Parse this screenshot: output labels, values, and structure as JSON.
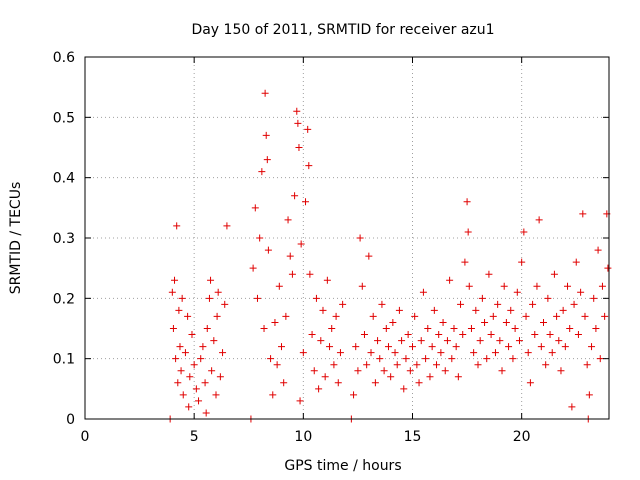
{
  "chart_data": {
    "type": "scatter",
    "title": "Day 150 of 2011, SRMTID for receiver azu1",
    "xlabel": "GPS time / hours",
    "ylabel": "SRMTID / TECUs",
    "xlim": [
      0,
      24
    ],
    "ylim": [
      0,
      0.6
    ],
    "xticks": [
      0,
      5,
      10,
      15,
      20
    ],
    "yticks": [
      0,
      0.1,
      0.2,
      0.3,
      0.4,
      0.5,
      0.6
    ],
    "xtick_labels": [
      "0",
      "5",
      "10",
      "15",
      "20"
    ],
    "ytick_labels": [
      "0",
      "0.1",
      "0.2",
      "0.3",
      "0.4",
      "0.5",
      "0.6"
    ],
    "grid": true,
    "marker": "+",
    "marker_color": "#e00000",
    "series": [
      {
        "name": "SRMTID",
        "points": [
          [
            3.9,
            0.0
          ],
          [
            4.0,
            0.21
          ],
          [
            4.05,
            0.15
          ],
          [
            4.1,
            0.23
          ],
          [
            4.15,
            0.1
          ],
          [
            4.2,
            0.32
          ],
          [
            4.25,
            0.06
          ],
          [
            4.3,
            0.18
          ],
          [
            4.35,
            0.12
          ],
          [
            4.4,
            0.08
          ],
          [
            4.45,
            0.2
          ],
          [
            4.5,
            0.04
          ],
          [
            4.6,
            0.11
          ],
          [
            4.7,
            0.17
          ],
          [
            4.75,
            0.02
          ],
          [
            4.8,
            0.07
          ],
          [
            4.9,
            0.14
          ],
          [
            5.0,
            0.09
          ],
          [
            5.1,
            0.05
          ],
          [
            5.2,
            0.03
          ],
          [
            5.3,
            0.1
          ],
          [
            5.4,
            0.12
          ],
          [
            5.5,
            0.06
          ],
          [
            5.55,
            0.01
          ],
          [
            5.6,
            0.15
          ],
          [
            5.7,
            0.2
          ],
          [
            5.75,
            0.23
          ],
          [
            5.8,
            0.08
          ],
          [
            5.9,
            0.13
          ],
          [
            6.0,
            0.04
          ],
          [
            6.05,
            0.17
          ],
          [
            6.1,
            0.21
          ],
          [
            6.2,
            0.07
          ],
          [
            6.3,
            0.11
          ],
          [
            6.4,
            0.19
          ],
          [
            6.5,
            0.32
          ],
          [
            7.6,
            0.0
          ],
          [
            7.7,
            0.25
          ],
          [
            7.8,
            0.35
          ],
          [
            7.9,
            0.2
          ],
          [
            8.0,
            0.3
          ],
          [
            8.1,
            0.41
          ],
          [
            8.2,
            0.15
          ],
          [
            8.25,
            0.54
          ],
          [
            8.3,
            0.47
          ],
          [
            8.35,
            0.43
          ],
          [
            8.4,
            0.28
          ],
          [
            8.5,
            0.1
          ],
          [
            8.6,
            0.04
          ],
          [
            8.7,
            0.16
          ],
          [
            8.8,
            0.09
          ],
          [
            8.9,
            0.22
          ],
          [
            9.0,
            0.12
          ],
          [
            9.1,
            0.06
          ],
          [
            9.2,
            0.17
          ],
          [
            9.3,
            0.33
          ],
          [
            9.4,
            0.27
          ],
          [
            9.5,
            0.24
          ],
          [
            9.6,
            0.37
          ],
          [
            9.7,
            0.51
          ],
          [
            9.75,
            0.49
          ],
          [
            9.8,
            0.45
          ],
          [
            9.85,
            0.03
          ],
          [
            9.9,
            0.29
          ],
          [
            10.0,
            0.11
          ],
          [
            10.1,
            0.36
          ],
          [
            10.2,
            0.48
          ],
          [
            10.25,
            0.42
          ],
          [
            10.3,
            0.24
          ],
          [
            10.4,
            0.14
          ],
          [
            10.5,
            0.08
          ],
          [
            10.6,
            0.2
          ],
          [
            10.7,
            0.05
          ],
          [
            10.8,
            0.13
          ],
          [
            10.9,
            0.18
          ],
          [
            11.0,
            0.07
          ],
          [
            11.1,
            0.23
          ],
          [
            11.2,
            0.12
          ],
          [
            11.3,
            0.15
          ],
          [
            11.4,
            0.09
          ],
          [
            11.5,
            0.17
          ],
          [
            11.6,
            0.06
          ],
          [
            11.7,
            0.11
          ],
          [
            11.8,
            0.19
          ],
          [
            12.2,
            0.0
          ],
          [
            12.3,
            0.04
          ],
          [
            12.4,
            0.12
          ],
          [
            12.5,
            0.08
          ],
          [
            12.6,
            0.3
          ],
          [
            12.7,
            0.22
          ],
          [
            12.8,
            0.14
          ],
          [
            12.9,
            0.09
          ],
          [
            13.0,
            0.27
          ],
          [
            13.1,
            0.11
          ],
          [
            13.2,
            0.17
          ],
          [
            13.3,
            0.06
          ],
          [
            13.4,
            0.13
          ],
          [
            13.5,
            0.1
          ],
          [
            13.6,
            0.19
          ],
          [
            13.7,
            0.08
          ],
          [
            13.8,
            0.15
          ],
          [
            13.9,
            0.12
          ],
          [
            14.0,
            0.07
          ],
          [
            14.1,
            0.16
          ],
          [
            14.2,
            0.11
          ],
          [
            14.3,
            0.09
          ],
          [
            14.4,
            0.18
          ],
          [
            14.5,
            0.13
          ],
          [
            14.6,
            0.05
          ],
          [
            14.7,
            0.1
          ],
          [
            14.8,
            0.14
          ],
          [
            14.9,
            0.08
          ],
          [
            15.0,
            0.12
          ],
          [
            15.1,
            0.17
          ],
          [
            15.2,
            0.09
          ],
          [
            15.3,
            0.06
          ],
          [
            15.4,
            0.13
          ],
          [
            15.5,
            0.21
          ],
          [
            15.6,
            0.1
          ],
          [
            15.7,
            0.15
          ],
          [
            15.8,
            0.07
          ],
          [
            15.9,
            0.12
          ],
          [
            16.0,
            0.18
          ],
          [
            16.1,
            0.09
          ],
          [
            16.2,
            0.14
          ],
          [
            16.3,
            0.11
          ],
          [
            16.4,
            0.16
          ],
          [
            16.5,
            0.08
          ],
          [
            16.6,
            0.13
          ],
          [
            16.7,
            0.23
          ],
          [
            16.8,
            0.1
          ],
          [
            16.9,
            0.15
          ],
          [
            17.0,
            0.12
          ],
          [
            17.1,
            0.07
          ],
          [
            17.2,
            0.19
          ],
          [
            17.3,
            0.14
          ],
          [
            17.4,
            0.26
          ],
          [
            17.5,
            0.36
          ],
          [
            17.55,
            0.31
          ],
          [
            17.6,
            0.22
          ],
          [
            17.7,
            0.15
          ],
          [
            17.8,
            0.11
          ],
          [
            17.9,
            0.18
          ],
          [
            18.0,
            0.09
          ],
          [
            18.1,
            0.13
          ],
          [
            18.2,
            0.2
          ],
          [
            18.3,
            0.16
          ],
          [
            18.4,
            0.1
          ],
          [
            18.5,
            0.24
          ],
          [
            18.6,
            0.14
          ],
          [
            18.7,
            0.17
          ],
          [
            18.8,
            0.11
          ],
          [
            18.9,
            0.19
          ],
          [
            19.0,
            0.13
          ],
          [
            19.1,
            0.08
          ],
          [
            19.2,
            0.22
          ],
          [
            19.3,
            0.16
          ],
          [
            19.4,
            0.12
          ],
          [
            19.5,
            0.18
          ],
          [
            19.6,
            0.1
          ],
          [
            19.7,
            0.15
          ],
          [
            19.8,
            0.21
          ],
          [
            19.9,
            0.13
          ],
          [
            20.0,
            0.26
          ],
          [
            20.1,
            0.31
          ],
          [
            20.2,
            0.17
          ],
          [
            20.3,
            0.11
          ],
          [
            20.4,
            0.06
          ],
          [
            20.5,
            0.19
          ],
          [
            20.6,
            0.14
          ],
          [
            20.7,
            0.22
          ],
          [
            20.8,
            0.33
          ],
          [
            20.9,
            0.12
          ],
          [
            21.0,
            0.16
          ],
          [
            21.1,
            0.09
          ],
          [
            21.2,
            0.2
          ],
          [
            21.3,
            0.14
          ],
          [
            21.4,
            0.11
          ],
          [
            21.5,
            0.24
          ],
          [
            21.6,
            0.17
          ],
          [
            21.7,
            0.13
          ],
          [
            21.8,
            0.08
          ],
          [
            21.9,
            0.18
          ],
          [
            22.0,
            0.12
          ],
          [
            22.1,
            0.22
          ],
          [
            22.2,
            0.15
          ],
          [
            22.3,
            0.02
          ],
          [
            22.4,
            0.19
          ],
          [
            22.5,
            0.26
          ],
          [
            22.6,
            0.14
          ],
          [
            22.7,
            0.21
          ],
          [
            22.8,
            0.34
          ],
          [
            22.9,
            0.17
          ],
          [
            23.0,
            0.09
          ],
          [
            23.05,
            0.0
          ],
          [
            23.1,
            0.04
          ],
          [
            23.2,
            0.12
          ],
          [
            23.3,
            0.2
          ],
          [
            23.4,
            0.15
          ],
          [
            23.5,
            0.28
          ],
          [
            23.6,
            0.1
          ],
          [
            23.7,
            0.22
          ],
          [
            23.8,
            0.17
          ],
          [
            23.9,
            0.34
          ],
          [
            23.95,
            0.25
          ]
        ]
      }
    ]
  }
}
